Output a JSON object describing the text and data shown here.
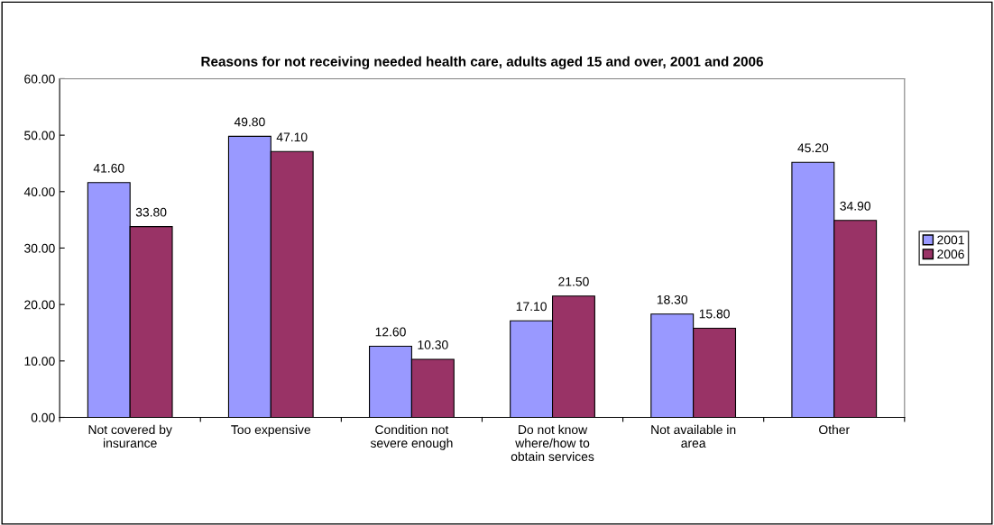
{
  "chart_data": {
    "type": "bar",
    "title": "Reasons for not receiving needed health care, adults aged 15 and over, 2001 and 2006",
    "categories": [
      "Not covered by\ninsurance",
      "Too expensive",
      "Condition not\nsevere enough",
      "Do not know\nwhere/how to\nobtain services",
      "Not available in\narea",
      "Other"
    ],
    "series": [
      {
        "name": "2001",
        "color": "#9999ff",
        "values": [
          41.6,
          49.8,
          12.6,
          17.1,
          18.3,
          45.2
        ],
        "value_labels": [
          "41.60",
          "49.80",
          "12.60",
          "17.10",
          "18.30",
          "45.20"
        ]
      },
      {
        "name": "2006",
        "color": "#993366",
        "values": [
          33.8,
          47.1,
          10.3,
          21.5,
          15.8,
          34.9
        ],
        "value_labels": [
          "33.80",
          "47.10",
          "10.30",
          "21.50",
          "15.80",
          "34.90"
        ]
      }
    ],
    "ylim": [
      0,
      60
    ],
    "yticks": [
      {
        "value": 0,
        "label": "0.00"
      },
      {
        "value": 10,
        "label": "10.00"
      },
      {
        "value": 20,
        "label": "20.00"
      },
      {
        "value": 30,
        "label": "30.00"
      },
      {
        "value": 40,
        "label": "40.00"
      },
      {
        "value": 50,
        "label": "50.00"
      },
      {
        "value": 60,
        "label": "60.00"
      }
    ],
    "grid": false,
    "legend": "right"
  }
}
